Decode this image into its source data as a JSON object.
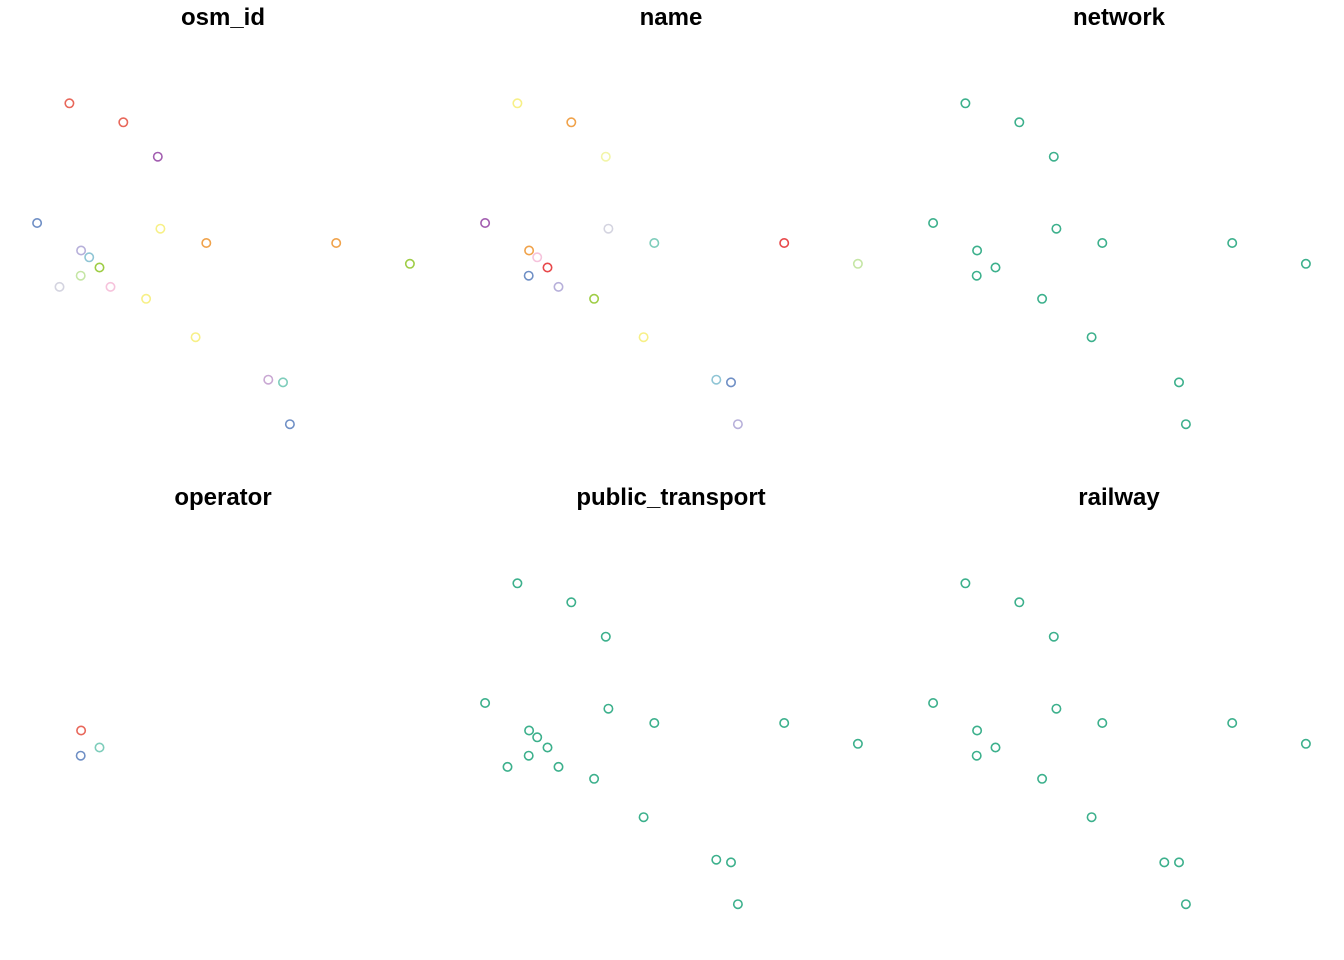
{
  "chart_data": {
    "type": "scatter",
    "layout": "small-multiples",
    "grid": false,
    "axes_visible": false,
    "marker": "open-circle",
    "xlim": [
      0,
      1000
    ],
    "ylim": [
      0,
      1000
    ],
    "panels": [
      {
        "title": "osm_id",
        "points": [
          {
            "x": 80,
            "y": 908,
            "color": "#e8675a"
          },
          {
            "x": 227,
            "y": 852,
            "color": "#e8675a"
          },
          {
            "x": 321,
            "y": 751,
            "color": "#a25db0"
          },
          {
            "x": -8,
            "y": 556,
            "color": "#6f8fc5"
          },
          {
            "x": 328,
            "y": 539,
            "color": "#f7f087"
          },
          {
            "x": 453,
            "y": 497,
            "color": "#f0a24a"
          },
          {
            "x": 807,
            "y": 497,
            "color": "#f0a24a"
          },
          {
            "x": 1008,
            "y": 436,
            "color": "#9ecd45"
          },
          {
            "x": 112,
            "y": 475,
            "color": "#b7b0da"
          },
          {
            "x": 134,
            "y": 455,
            "color": "#8fc5d5"
          },
          {
            "x": 162,
            "y": 425,
            "color": "#9ecd45"
          },
          {
            "x": 111,
            "y": 401,
            "color": "#c5e6a5"
          },
          {
            "x": 53,
            "y": 368,
            "color": "#d4d4e0"
          },
          {
            "x": 192,
            "y": 368,
            "color": "#f6c3dc"
          },
          {
            "x": 289,
            "y": 333,
            "color": "#f7f087"
          },
          {
            "x": 424,
            "y": 220,
            "color": "#f7f087"
          },
          {
            "x": 622,
            "y": 95,
            "color": "#c9a8d3"
          },
          {
            "x": 662,
            "y": 87,
            "color": "#7ecdbb"
          },
          {
            "x": 681,
            "y": -36,
            "color": "#6f8fc5"
          }
        ]
      },
      {
        "title": "name",
        "points": [
          {
            "x": 80,
            "y": 908,
            "color": "#f7f087"
          },
          {
            "x": 227,
            "y": 852,
            "color": "#f0a24a"
          },
          {
            "x": 321,
            "y": 751,
            "color": "#f2f5a8"
          },
          {
            "x": -8,
            "y": 556,
            "color": "#a25db0"
          },
          {
            "x": 328,
            "y": 539,
            "color": "#d4d4e0"
          },
          {
            "x": 453,
            "y": 497,
            "color": "#7ecdbb"
          },
          {
            "x": 807,
            "y": 497,
            "color": "#e8484a"
          },
          {
            "x": 1008,
            "y": 436,
            "color": "#c5e6a5"
          },
          {
            "x": 112,
            "y": 475,
            "color": "#f0a24a"
          },
          {
            "x": 134,
            "y": 455,
            "color": "#f6c3dc"
          },
          {
            "x": 162,
            "y": 425,
            "color": "#e8484a"
          },
          {
            "x": 111,
            "y": 401,
            "color": "#6f8fc5"
          },
          {
            "x": 192,
            "y": 368,
            "color": "#b7b0da"
          },
          {
            "x": 289,
            "y": 333,
            "color": "#9ecd45"
          },
          {
            "x": 424,
            "y": 220,
            "color": "#f7f087"
          },
          {
            "x": 622,
            "y": 95,
            "color": "#8fc5d5"
          },
          {
            "x": 662,
            "y": 87,
            "color": "#6f8fc5"
          },
          {
            "x": 681,
            "y": -36,
            "color": "#b7b0da"
          }
        ]
      },
      {
        "title": "network",
        "points": [
          {
            "x": 80,
            "y": 908,
            "color": "#3cb08c"
          },
          {
            "x": 227,
            "y": 852,
            "color": "#3cb08c"
          },
          {
            "x": 321,
            "y": 751,
            "color": "#3cb08c"
          },
          {
            "x": -8,
            "y": 556,
            "color": "#3cb08c"
          },
          {
            "x": 328,
            "y": 539,
            "color": "#3cb08c"
          },
          {
            "x": 453,
            "y": 497,
            "color": "#3cb08c"
          },
          {
            "x": 807,
            "y": 497,
            "color": "#3cb08c"
          },
          {
            "x": 1008,
            "y": 436,
            "color": "#3cb08c"
          },
          {
            "x": 112,
            "y": 475,
            "color": "#3cb08c"
          },
          {
            "x": 162,
            "y": 425,
            "color": "#3cb08c"
          },
          {
            "x": 111,
            "y": 401,
            "color": "#3cb08c"
          },
          {
            "x": 289,
            "y": 333,
            "color": "#3cb08c"
          },
          {
            "x": 424,
            "y": 220,
            "color": "#3cb08c"
          },
          {
            "x": 662,
            "y": 87,
            "color": "#3cb08c"
          },
          {
            "x": 681,
            "y": -36,
            "color": "#3cb08c"
          }
        ]
      },
      {
        "title": "operator",
        "points": [
          {
            "x": 112,
            "y": 475,
            "color": "#e8675a"
          },
          {
            "x": 162,
            "y": 425,
            "color": "#7ecdbb"
          },
          {
            "x": 111,
            "y": 401,
            "color": "#6f8fc5"
          }
        ]
      },
      {
        "title": "public_transport",
        "points": [
          {
            "x": 80,
            "y": 908,
            "color": "#3cb08c"
          },
          {
            "x": 227,
            "y": 852,
            "color": "#3cb08c"
          },
          {
            "x": 321,
            "y": 751,
            "color": "#3cb08c"
          },
          {
            "x": -8,
            "y": 556,
            "color": "#3cb08c"
          },
          {
            "x": 328,
            "y": 539,
            "color": "#3cb08c"
          },
          {
            "x": 453,
            "y": 497,
            "color": "#3cb08c"
          },
          {
            "x": 807,
            "y": 497,
            "color": "#3cb08c"
          },
          {
            "x": 1008,
            "y": 436,
            "color": "#3cb08c"
          },
          {
            "x": 112,
            "y": 475,
            "color": "#3cb08c"
          },
          {
            "x": 134,
            "y": 455,
            "color": "#3cb08c"
          },
          {
            "x": 162,
            "y": 425,
            "color": "#3cb08c"
          },
          {
            "x": 111,
            "y": 401,
            "color": "#3cb08c"
          },
          {
            "x": 53,
            "y": 368,
            "color": "#3cb08c"
          },
          {
            "x": 192,
            "y": 368,
            "color": "#3cb08c"
          },
          {
            "x": 289,
            "y": 333,
            "color": "#3cb08c"
          },
          {
            "x": 424,
            "y": 220,
            "color": "#3cb08c"
          },
          {
            "x": 622,
            "y": 95,
            "color": "#3cb08c"
          },
          {
            "x": 662,
            "y": 87,
            "color": "#3cb08c"
          },
          {
            "x": 681,
            "y": -36,
            "color": "#3cb08c"
          }
        ]
      },
      {
        "title": "railway",
        "points": [
          {
            "x": 80,
            "y": 908,
            "color": "#3cb08c"
          },
          {
            "x": 227,
            "y": 852,
            "color": "#3cb08c"
          },
          {
            "x": 321,
            "y": 751,
            "color": "#3cb08c"
          },
          {
            "x": -8,
            "y": 556,
            "color": "#3cb08c"
          },
          {
            "x": 328,
            "y": 539,
            "color": "#3cb08c"
          },
          {
            "x": 453,
            "y": 497,
            "color": "#3cb08c"
          },
          {
            "x": 807,
            "y": 497,
            "color": "#3cb08c"
          },
          {
            "x": 1008,
            "y": 436,
            "color": "#3cb08c"
          },
          {
            "x": 112,
            "y": 475,
            "color": "#3cb08c"
          },
          {
            "x": 162,
            "y": 425,
            "color": "#3cb08c"
          },
          {
            "x": 111,
            "y": 401,
            "color": "#3cb08c"
          },
          {
            "x": 289,
            "y": 333,
            "color": "#3cb08c"
          },
          {
            "x": 424,
            "y": 220,
            "color": "#3cb08c"
          },
          {
            "x": 622,
            "y": 87,
            "color": "#3cb08c"
          },
          {
            "x": 662,
            "y": 87,
            "color": "#3cb08c"
          },
          {
            "x": 681,
            "y": -36,
            "color": "#3cb08c"
          }
        ]
      }
    ]
  }
}
